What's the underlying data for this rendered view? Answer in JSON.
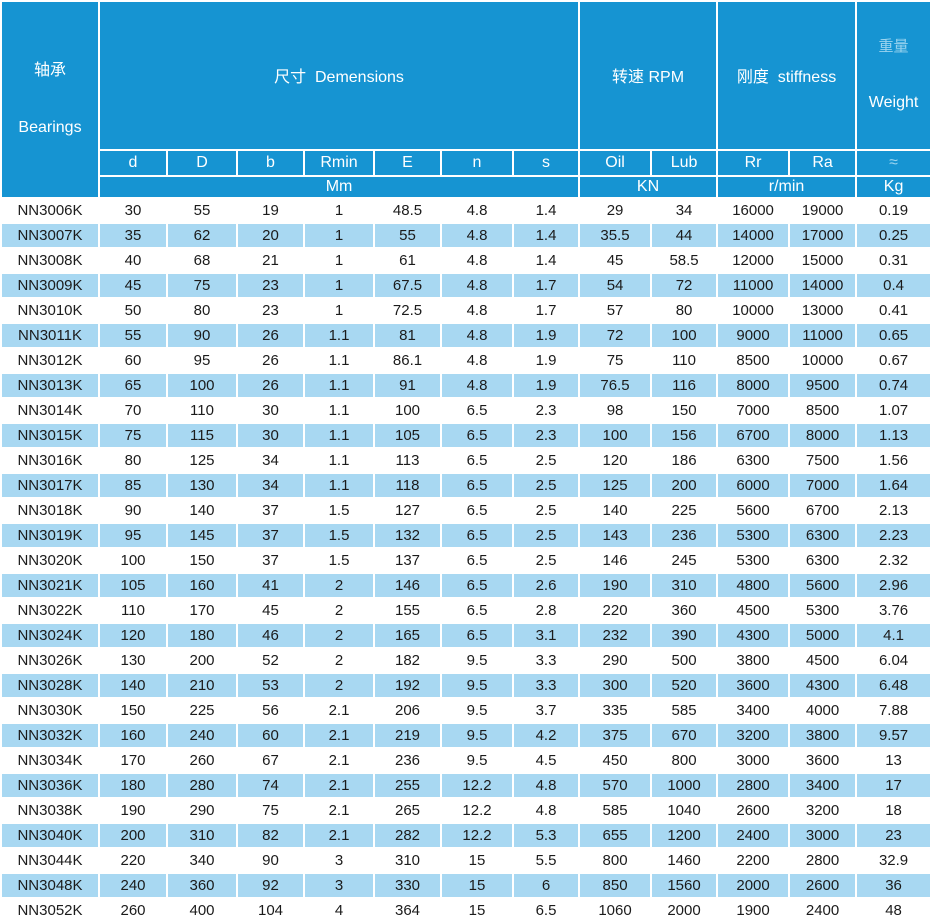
{
  "table": {
    "header": {
      "bearings_zh": "轴承",
      "bearings_en": "Bearings",
      "dimensions": "尺寸  Demensions",
      "rpm": "转速 RPM",
      "stiffness": "刚度  stiffness",
      "weight_zh": "重量",
      "weight_en": "Weight",
      "sub_columns": [
        "d",
        "D",
        "b",
        "Rmin",
        "E",
        "n",
        "s",
        "Oil",
        "Lub",
        "Rr",
        "Ra",
        "≈"
      ],
      "units": {
        "dimensions": "Mm",
        "rpm": "KN",
        "stiffness": "r/min",
        "weight": "Kg"
      }
    },
    "rows": [
      [
        "NN3006K",
        "30",
        "55",
        "19",
        "1",
        "48.5",
        "4.8",
        "1.4",
        "29",
        "34",
        "16000",
        "19000",
        "0.19"
      ],
      [
        "NN3007K",
        "35",
        "62",
        "20",
        "1",
        "55",
        "4.8",
        "1.4",
        "35.5",
        "44",
        "14000",
        "17000",
        "0.25"
      ],
      [
        "NN3008K",
        "40",
        "68",
        "21",
        "1",
        "61",
        "4.8",
        "1.4",
        "45",
        "58.5",
        "12000",
        "15000",
        "0.31"
      ],
      [
        "NN3009K",
        "45",
        "75",
        "23",
        "1",
        "67.5",
        "4.8",
        "1.7",
        "54",
        "72",
        "11000",
        "14000",
        "0.4"
      ],
      [
        "NN3010K",
        "50",
        "80",
        "23",
        "1",
        "72.5",
        "4.8",
        "1.7",
        "57",
        "80",
        "10000",
        "13000",
        "0.41"
      ],
      [
        "NN3011K",
        "55",
        "90",
        "26",
        "1.1",
        "81",
        "4.8",
        "1.9",
        "72",
        "100",
        "9000",
        "11000",
        "0.65"
      ],
      [
        "NN3012K",
        "60",
        "95",
        "26",
        "1.1",
        "86.1",
        "4.8",
        "1.9",
        "75",
        "110",
        "8500",
        "10000",
        "0.67"
      ],
      [
        "NN3013K",
        "65",
        "100",
        "26",
        "1.1",
        "91",
        "4.8",
        "1.9",
        "76.5",
        "116",
        "8000",
        "9500",
        "0.74"
      ],
      [
        "NN3014K",
        "70",
        "110",
        "30",
        "1.1",
        "100",
        "6.5",
        "2.3",
        "98",
        "150",
        "7000",
        "8500",
        "1.07"
      ],
      [
        "NN3015K",
        "75",
        "115",
        "30",
        "1.1",
        "105",
        "6.5",
        "2.3",
        "100",
        "156",
        "6700",
        "8000",
        "1.13"
      ],
      [
        "NN3016K",
        "80",
        "125",
        "34",
        "1.1",
        "113",
        "6.5",
        "2.5",
        "120",
        "186",
        "6300",
        "7500",
        "1.56"
      ],
      [
        "NN3017K",
        "85",
        "130",
        "34",
        "1.1",
        "118",
        "6.5",
        "2.5",
        "125",
        "200",
        "6000",
        "7000",
        "1.64"
      ],
      [
        "NN3018K",
        "90",
        "140",
        "37",
        "1.5",
        "127",
        "6.5",
        "2.5",
        "140",
        "225",
        "5600",
        "6700",
        "2.13"
      ],
      [
        "NN3019K",
        "95",
        "145",
        "37",
        "1.5",
        "132",
        "6.5",
        "2.5",
        "143",
        "236",
        "5300",
        "6300",
        "2.23"
      ],
      [
        "NN3020K",
        "100",
        "150",
        "37",
        "1.5",
        "137",
        "6.5",
        "2.5",
        "146",
        "245",
        "5300",
        "6300",
        "2.32"
      ],
      [
        "NN3021K",
        "105",
        "160",
        "41",
        "2",
        "146",
        "6.5",
        "2.6",
        "190",
        "310",
        "4800",
        "5600",
        "2.96"
      ],
      [
        "NN3022K",
        "110",
        "170",
        "45",
        "2",
        "155",
        "6.5",
        "2.8",
        "220",
        "360",
        "4500",
        "5300",
        "3.76"
      ],
      [
        "NN3024K",
        "120",
        "180",
        "46",
        "2",
        "165",
        "6.5",
        "3.1",
        "232",
        "390",
        "4300",
        "5000",
        "4.1"
      ],
      [
        "NN3026K",
        "130",
        "200",
        "52",
        "2",
        "182",
        "9.5",
        "3.3",
        "290",
        "500",
        "3800",
        "4500",
        "6.04"
      ],
      [
        "NN3028K",
        "140",
        "210",
        "53",
        "2",
        "192",
        "9.5",
        "3.3",
        "300",
        "520",
        "3600",
        "4300",
        "6.48"
      ],
      [
        "NN3030K",
        "150",
        "225",
        "56",
        "2.1",
        "206",
        "9.5",
        "3.7",
        "335",
        "585",
        "3400",
        "4000",
        "7.88"
      ],
      [
        "NN3032K",
        "160",
        "240",
        "60",
        "2.1",
        "219",
        "9.5",
        "4.2",
        "375",
        "670",
        "3200",
        "3800",
        "9.57"
      ],
      [
        "NN3034K",
        "170",
        "260",
        "67",
        "2.1",
        "236",
        "9.5",
        "4.5",
        "450",
        "800",
        "3000",
        "3600",
        "13"
      ],
      [
        "NN3036K",
        "180",
        "280",
        "74",
        "2.1",
        "255",
        "12.2",
        "4.8",
        "570",
        "1000",
        "2800",
        "3400",
        "17"
      ],
      [
        "NN3038K",
        "190",
        "290",
        "75",
        "2.1",
        "265",
        "12.2",
        "4.8",
        "585",
        "1040",
        "2600",
        "3200",
        "18"
      ],
      [
        "NN3040K",
        "200",
        "310",
        "82",
        "2.1",
        "282",
        "12.2",
        "5.3",
        "655",
        "1200",
        "2400",
        "3000",
        "23"
      ],
      [
        "NN3044K",
        "220",
        "340",
        "90",
        "3",
        "310",
        "15",
        "5.5",
        "800",
        "1460",
        "2200",
        "2800",
        "32.9"
      ],
      [
        "NN3048K",
        "240",
        "360",
        "92",
        "3",
        "330",
        "15",
        "6",
        "850",
        "1560",
        "2000",
        "2600",
        "36"
      ],
      [
        "NN3052K",
        "260",
        "400",
        "104",
        "4",
        "364",
        "15",
        "6.5",
        "1060",
        "2000",
        "1900",
        "2400",
        "48"
      ]
    ]
  },
  "colors": {
    "header_bg": "#1694d2",
    "row_alt_bg": "#a8d8f2",
    "row_bg": "#ffffff",
    "header_text": "#ffffff",
    "pale_header_text": "#9bd4ef",
    "body_text": "#1b1b1b",
    "grid": "#ffffff"
  }
}
